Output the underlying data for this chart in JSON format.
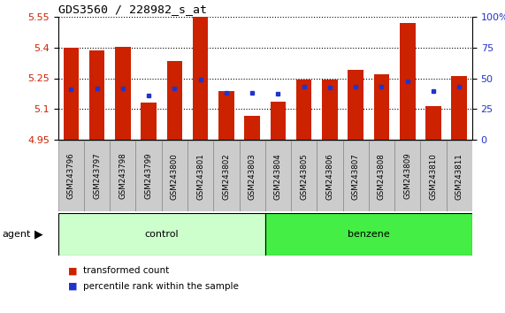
{
  "title": "GDS3560 / 228982_s_at",
  "samples": [
    "GSM243796",
    "GSM243797",
    "GSM243798",
    "GSM243799",
    "GSM243800",
    "GSM243801",
    "GSM243802",
    "GSM243803",
    "GSM243804",
    "GSM243805",
    "GSM243806",
    "GSM243807",
    "GSM243808",
    "GSM243809",
    "GSM243810",
    "GSM243811"
  ],
  "bar_base": 4.95,
  "bar_tops": [
    5.4,
    5.385,
    5.405,
    5.13,
    5.335,
    5.56,
    5.185,
    5.065,
    5.135,
    5.245,
    5.245,
    5.29,
    5.27,
    5.52,
    5.115,
    5.26
  ],
  "percentile_values": [
    5.195,
    5.2,
    5.2,
    5.165,
    5.2,
    5.245,
    5.18,
    5.18,
    5.175,
    5.21,
    5.205,
    5.21,
    5.21,
    5.235,
    5.185,
    5.21
  ],
  "ylim": [
    4.95,
    5.55
  ],
  "yticks_left": [
    4.95,
    5.1,
    5.25,
    5.4,
    5.55
  ],
  "yticks_right": [
    0,
    25,
    50,
    75,
    100
  ],
  "bar_color": "#cc2200",
  "blue_color": "#2233cc",
  "control_color": "#ccffcc",
  "benzene_color": "#44ee44",
  "groups": [
    {
      "label": "control",
      "start": 0,
      "end": 7
    },
    {
      "label": "benzene",
      "start": 8,
      "end": 15
    }
  ],
  "agent_label": "agent",
  "legend_items": [
    {
      "label": "transformed count",
      "color": "#cc2200"
    },
    {
      "label": "percentile rank within the sample",
      "color": "#2233cc"
    }
  ],
  "background_color": "#ffffff",
  "tick_label_bg": "#cccccc",
  "bar_width": 0.6
}
